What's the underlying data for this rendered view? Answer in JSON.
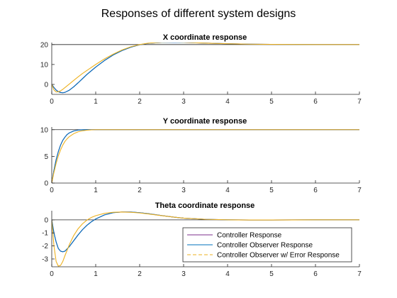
{
  "figure": {
    "title": "Responses of different system designs"
  },
  "chart_data": [
    {
      "type": "line",
      "title": "X coordinate response",
      "xlim": [
        0,
        7
      ],
      "ylim": [
        -5,
        21
      ],
      "xticks": [
        0,
        1,
        2,
        3,
        4,
        5,
        6,
        7
      ],
      "yticks": [
        0,
        10,
        20
      ],
      "reference": 20,
      "series": [
        {
          "color": "#7e2f8e",
          "dash": "solid",
          "x": [
            0,
            0.05,
            0.1,
            0.15,
            0.2,
            0.25,
            0.3,
            0.4,
            0.5,
            0.6,
            0.7,
            0.8,
            1.0,
            1.2,
            1.4,
            1.6,
            1.8,
            2.0,
            2.2,
            2.5,
            2.8,
            3.0,
            3.5,
            4.0,
            4.5,
            5.0,
            6.0,
            7.0
          ],
          "y": [
            0,
            -1.5,
            -2.8,
            -3.6,
            -4.0,
            -4.2,
            -4.0,
            -2.9,
            -1.2,
            0.8,
            2.9,
            5.0,
            8.7,
            12.0,
            14.8,
            17.0,
            18.7,
            19.9,
            20.6,
            21.0,
            21.1,
            21.0,
            20.7,
            20.4,
            20.2,
            20.1,
            20.0,
            20.0
          ]
        },
        {
          "color": "#0072bd",
          "dash": "solid",
          "x": [
            0,
            0.05,
            0.1,
            0.15,
            0.2,
            0.25,
            0.3,
            0.4,
            0.5,
            0.6,
            0.7,
            0.8,
            1.0,
            1.2,
            1.4,
            1.6,
            1.8,
            2.0,
            2.2,
            2.5,
            2.8,
            3.0,
            3.5,
            4.0,
            4.5,
            5.0,
            6.0,
            7.0
          ],
          "y": [
            0,
            -1.6,
            -2.9,
            -3.7,
            -4.1,
            -4.2,
            -4.0,
            -2.9,
            -1.2,
            0.8,
            2.9,
            5.0,
            8.7,
            12.0,
            14.8,
            17.0,
            18.7,
            19.9,
            20.6,
            21.0,
            21.1,
            21.0,
            20.7,
            20.4,
            20.2,
            20.1,
            20.0,
            20.0
          ]
        },
        {
          "color": "#edb120",
          "dash": "solid",
          "x": [
            0,
            0.05,
            0.1,
            0.15,
            0.2,
            0.25,
            0.3,
            0.4,
            0.5,
            0.6,
            0.7,
            0.8,
            1.0,
            1.2,
            1.4,
            1.6,
            1.8,
            2.0,
            2.2,
            2.5,
            2.8,
            3.0,
            3.5,
            4.0,
            4.5,
            5.0,
            6.0,
            7.0
          ],
          "y": [
            0,
            -2.8,
            -3.8,
            -3.7,
            -3.2,
            -2.5,
            -1.6,
            0.2,
            2.0,
            3.8,
            5.5,
            7.0,
            10.0,
            12.8,
            15.2,
            17.3,
            18.9,
            20.0,
            20.7,
            21.1,
            21.2,
            21.1,
            20.7,
            20.4,
            20.2,
            20.1,
            20.0,
            20.0
          ]
        }
      ]
    },
    {
      "type": "line",
      "title": "Y coordinate response",
      "xlim": [
        0,
        7
      ],
      "ylim": [
        0,
        10.5
      ],
      "xticks": [
        0,
        1,
        2,
        3,
        4,
        5,
        6,
        7
      ],
      "yticks": [
        0,
        5,
        10
      ],
      "reference": 10,
      "series": [
        {
          "color": "#7e2f8e",
          "dash": "solid",
          "x": [
            0,
            0.05,
            0.1,
            0.15,
            0.2,
            0.25,
            0.3,
            0.35,
            0.4,
            0.5,
            0.6,
            0.7,
            0.8,
            0.9,
            1.0,
            1.5,
            2.0,
            7.0
          ],
          "y": [
            0,
            2.4,
            4.4,
            5.9,
            7.1,
            8.0,
            8.6,
            9.1,
            9.4,
            9.75,
            9.92,
            9.98,
            10.0,
            10.0,
            10.0,
            10.0,
            10.0,
            10.0
          ]
        },
        {
          "color": "#0072bd",
          "dash": "solid",
          "x": [
            0,
            0.05,
            0.1,
            0.15,
            0.2,
            0.25,
            0.3,
            0.35,
            0.4,
            0.5,
            0.6,
            0.7,
            0.8,
            0.9,
            1.0,
            1.5,
            2.0,
            7.0
          ],
          "y": [
            0,
            2.4,
            4.4,
            5.9,
            7.1,
            8.0,
            8.6,
            9.1,
            9.4,
            9.75,
            9.92,
            9.98,
            10.0,
            10.0,
            10.0,
            10.0,
            10.0,
            10.0
          ]
        },
        {
          "color": "#edb120",
          "dash": "solid",
          "x": [
            0,
            0.05,
            0.1,
            0.15,
            0.2,
            0.25,
            0.3,
            0.35,
            0.4,
            0.5,
            0.6,
            0.7,
            0.8,
            0.9,
            1.0,
            1.5,
            2.0,
            7.0
          ],
          "y": [
            0,
            2.0,
            3.7,
            5.1,
            6.2,
            7.1,
            7.8,
            8.3,
            8.7,
            9.25,
            9.6,
            9.8,
            9.9,
            9.97,
            10.0,
            10.0,
            10.0,
            10.0
          ]
        }
      ]
    },
    {
      "type": "line",
      "title": "Theta coordinate response",
      "xlim": [
        0,
        7
      ],
      "ylim": [
        -3.6,
        0.7
      ],
      "xticks": [
        0,
        1,
        2,
        3,
        4,
        5,
        6,
        7
      ],
      "yticks": [
        -3,
        -2,
        -1,
        0
      ],
      "reference": 0,
      "legend_position": "bottom-right",
      "legend": [
        "Controller Response",
        "Controller Observer Response",
        "Controller Observer w/ Error Response"
      ],
      "series": [
        {
          "color": "#7e2f8e",
          "dash": "solid",
          "x": [
            0,
            0.05,
            0.1,
            0.15,
            0.2,
            0.25,
            0.3,
            0.4,
            0.5,
            0.6,
            0.7,
            0.8,
            0.9,
            1.0,
            1.2,
            1.4,
            1.6,
            1.8,
            2.0,
            2.2,
            2.5,
            2.8,
            3.0,
            3.5,
            4.0,
            4.5,
            5.0,
            6.0,
            7.0
          ],
          "y": [
            0,
            -1.0,
            -1.7,
            -2.2,
            -2.4,
            -2.45,
            -2.4,
            -2.05,
            -1.6,
            -1.15,
            -0.75,
            -0.42,
            -0.15,
            0.07,
            0.38,
            0.55,
            0.6,
            0.6,
            0.55,
            0.47,
            0.33,
            0.2,
            0.13,
            0.04,
            0.0,
            -0.01,
            -0.01,
            0.0,
            0.0
          ]
        },
        {
          "color": "#0072bd",
          "dash": "solid",
          "x": [
            0,
            0.05,
            0.1,
            0.15,
            0.2,
            0.25,
            0.3,
            0.4,
            0.5,
            0.6,
            0.7,
            0.8,
            0.9,
            1.0,
            1.2,
            1.4,
            1.6,
            1.8,
            2.0,
            2.2,
            2.5,
            2.8,
            3.0,
            3.5,
            4.0,
            4.5,
            5.0,
            6.0,
            7.0
          ],
          "y": [
            0,
            -1.0,
            -1.7,
            -2.2,
            -2.4,
            -2.45,
            -2.4,
            -2.05,
            -1.6,
            -1.15,
            -0.75,
            -0.42,
            -0.15,
            0.07,
            0.38,
            0.55,
            0.6,
            0.6,
            0.55,
            0.47,
            0.33,
            0.2,
            0.13,
            0.04,
            0.0,
            -0.01,
            -0.01,
            0.0,
            0.0
          ]
        },
        {
          "color": "#edb120",
          "dash": "solid",
          "x": [
            0,
            0.05,
            0.1,
            0.15,
            0.2,
            0.25,
            0.3,
            0.4,
            0.5,
            0.6,
            0.7,
            0.8,
            0.9,
            1.0,
            1.2,
            1.4,
            1.6,
            1.8,
            2.0,
            2.2,
            2.5,
            2.8,
            3.0,
            3.5,
            4.0,
            4.5,
            5.0,
            6.0,
            7.0
          ],
          "y": [
            0,
            -2.0,
            -3.2,
            -3.55,
            -3.5,
            -3.2,
            -2.75,
            -1.9,
            -1.2,
            -0.68,
            -0.3,
            -0.02,
            0.18,
            0.32,
            0.5,
            0.58,
            0.6,
            0.58,
            0.53,
            0.45,
            0.32,
            0.2,
            0.13,
            0.04,
            0.0,
            -0.01,
            -0.01,
            0.0,
            0.0
          ]
        }
      ]
    }
  ]
}
